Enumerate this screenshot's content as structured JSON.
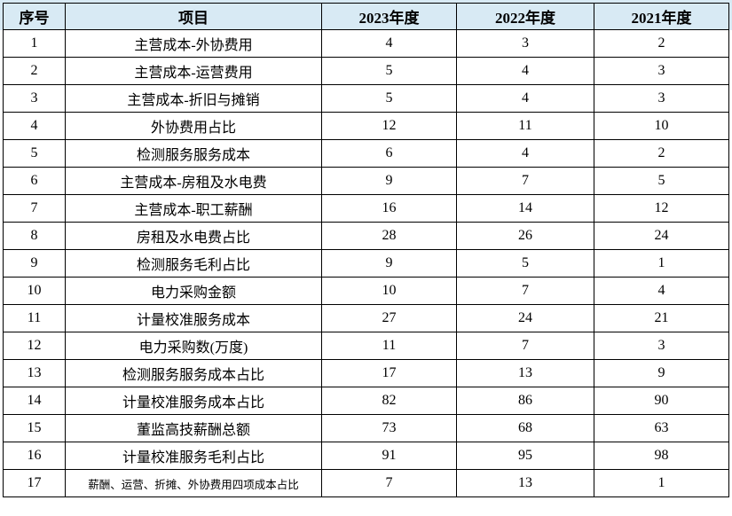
{
  "colors": {
    "header_bg": "#d8eaf4",
    "top_band_bg": "#d8eaf4",
    "cell_bg": "#ffffff",
    "border": "#000000",
    "text": "#000000"
  },
  "chart_data": {
    "type": "table",
    "columns": [
      "序号",
      "项目",
      "2023年度",
      "2022年度",
      "2021年度"
    ],
    "rows": [
      [
        "1",
        "主营成本-外协费用",
        "4",
        "3",
        "2"
      ],
      [
        "2",
        "主营成本-运营费用",
        "5",
        "4",
        "3"
      ],
      [
        "3",
        "主营成本-折旧与摊销",
        "5",
        "4",
        "3"
      ],
      [
        "4",
        "外协费用占比",
        "12",
        "11",
        "10"
      ],
      [
        "5",
        "检测服务服务成本",
        "6",
        "4",
        "2"
      ],
      [
        "6",
        "主营成本-房租及水电费",
        "9",
        "7",
        "5"
      ],
      [
        "7",
        "主营成本-职工薪酬",
        "16",
        "14",
        "12"
      ],
      [
        "8",
        "房租及水电费占比",
        "28",
        "26",
        "24"
      ],
      [
        "9",
        "检测服务毛利占比",
        "9",
        "5",
        "1"
      ],
      [
        "10",
        "电力采购金额",
        "10",
        "7",
        "4"
      ],
      [
        "11",
        "计量校准服务成本",
        "27",
        "24",
        "21"
      ],
      [
        "12",
        "电力采购数(万度)",
        "11",
        "7",
        "3"
      ],
      [
        "13",
        "检测服务服务成本占比",
        "17",
        "13",
        "9"
      ],
      [
        "14",
        "计量校准服务成本占比",
        "82",
        "86",
        "90"
      ],
      [
        "15",
        "董监高技薪酬总额",
        "73",
        "68",
        "63"
      ],
      [
        "16",
        "计量校准服务毛利占比",
        "91",
        "95",
        "98"
      ],
      [
        "17",
        "薪酬、运营、折摊、外协费用四项成本占比",
        "7",
        "13",
        "1"
      ]
    ]
  }
}
